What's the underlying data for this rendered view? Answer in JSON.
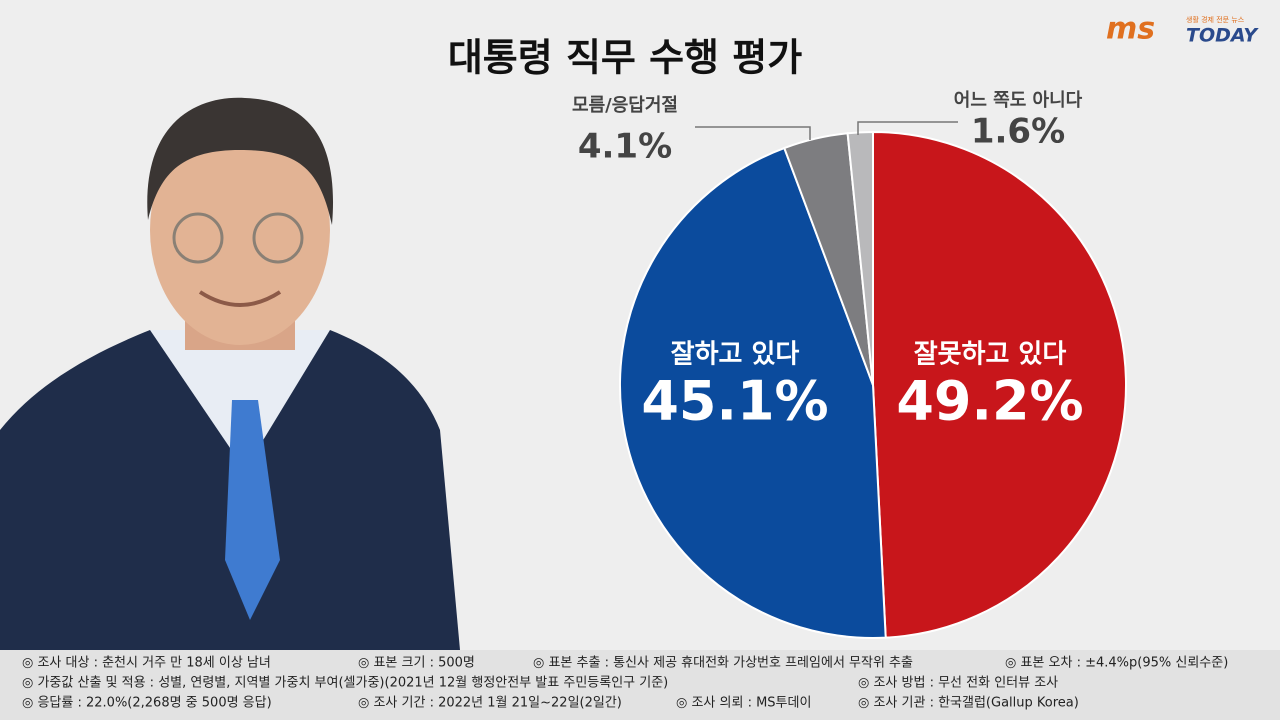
{
  "chart_data": {
    "type": "pie",
    "title": "대통령 직무 수행 평가",
    "categories": [
      "잘못하고 있다",
      "잘하고 있다",
      "모름/응답거절",
      "어느 쪽도 아니다"
    ],
    "values": [
      49.2,
      45.1,
      4.1,
      1.6
    ],
    "value_labels": [
      "49.2%",
      "45.1%",
      "4.1%",
      "1.6%"
    ],
    "colors": [
      "#c8161b",
      "#0b4b9d",
      "#7d7d80",
      "#b9b9bb"
    ]
  },
  "logo": {
    "brand": "ms",
    "name": "TODAY",
    "tagline": "생활 경제 전문 뉴스"
  },
  "footnotes": [
    [
      "◎ 조사 대상 : 춘천시 거주 만 18세 이상 남녀",
      "◎ 표본 크기 : 500명",
      "◎ 표본 추출 : 통신사 제공 휴대전화 가상번호 프레임에서 무작위 추출",
      "◎ 표본 오차 : ±4.4%p(95% 신뢰수준)"
    ],
    [
      "◎ 가중값 산출 및 적용 : 성별, 연령별, 지역별 가중치 부여(셀가중)(2021년 12월 행정안전부 발표 주민등록인구 기준)",
      "◎ 조사 방법 : 무선 전화 인터뷰 조사"
    ],
    [
      "◎ 응답률 : 22.0%(2,268명 중 500명 응답)",
      "◎ 조사 기간 : 2022년 1월 21일~22일(2일간)",
      "◎ 조사 의뢰 : MS투데이",
      "◎ 조사 기관 : 한국갤럽(Gallup Korea)"
    ]
  ]
}
